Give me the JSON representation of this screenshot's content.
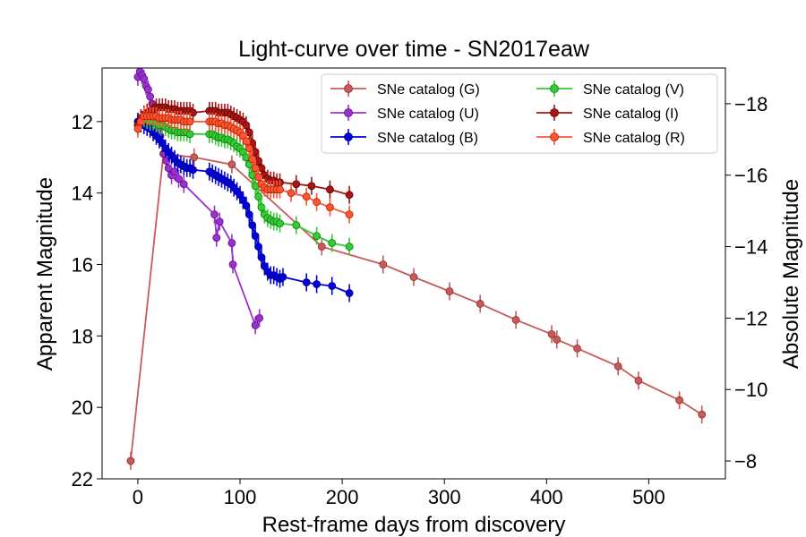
{
  "chart_data": {
    "type": "scatter",
    "title": "Light-curve over time - SN2017eaw",
    "xlabel": "Rest-frame days from discovery",
    "ylabel": "Apparent Magnitude",
    "ylabel_right": "Absolute Magnitude",
    "xlim": [
      -35,
      575
    ],
    "ylim": [
      22,
      10.5
    ],
    "y_inverted": true,
    "xticks": [
      0,
      100,
      200,
      300,
      400,
      500
    ],
    "yticks": [
      12,
      14,
      16,
      18,
      20,
      22
    ],
    "yticks_right": [
      -18,
      -16,
      -14,
      -12,
      -10,
      -8
    ],
    "right_axis_offset": 29.5,
    "legend_position": "upper right",
    "legend_columns": 2,
    "grid": false,
    "series": [
      {
        "name": "SNe catalog (G)",
        "color": "#c85a5a",
        "edge": "#8b2e2e",
        "points": [
          [
            -7,
            21.5
          ],
          [
            25,
            12.9
          ],
          [
            55,
            13.0
          ],
          [
            92,
            13.2
          ],
          [
            180,
            15.5
          ],
          [
            240,
            16.0
          ],
          [
            270,
            16.35
          ],
          [
            305,
            16.75
          ],
          [
            335,
            17.1
          ],
          [
            370,
            17.55
          ],
          [
            405,
            17.95
          ],
          [
            410,
            18.1
          ],
          [
            430,
            18.35
          ],
          [
            470,
            18.85
          ],
          [
            490,
            19.25
          ],
          [
            530,
            19.8
          ],
          [
            552,
            20.2
          ]
        ]
      },
      {
        "name": "SNe catalog (U)",
        "color": "#9b30d0",
        "edge": "#5a1080",
        "points": [
          [
            0,
            10.75
          ],
          [
            2,
            10.6
          ],
          [
            4,
            10.7
          ],
          [
            6,
            10.8
          ],
          [
            8,
            11.0
          ],
          [
            10,
            11.1
          ],
          [
            12,
            11.3
          ],
          [
            14,
            11.5
          ],
          [
            16,
            11.7
          ],
          [
            18,
            12.0
          ],
          [
            20,
            12.2
          ],
          [
            22,
            12.4
          ],
          [
            24,
            12.6
          ],
          [
            26,
            12.9
          ],
          [
            28,
            13.1
          ],
          [
            30,
            13.3
          ],
          [
            33,
            13.5
          ],
          [
            36,
            13.4
          ],
          [
            40,
            13.6
          ],
          [
            45,
            13.75
          ],
          [
            75,
            14.6
          ],
          [
            77,
            15.25
          ],
          [
            80,
            14.8
          ],
          [
            92,
            15.4
          ],
          [
            93,
            16.0
          ],
          [
            115,
            17.7
          ],
          [
            119,
            17.5
          ]
        ]
      },
      {
        "name": "SNe catalog (B)",
        "color": "#0000dd",
        "edge": "#000080",
        "points": [
          [
            0,
            12.0
          ],
          [
            3,
            12.05
          ],
          [
            6,
            12.1
          ],
          [
            9,
            12.15
          ],
          [
            12,
            12.2
          ],
          [
            15,
            12.3
          ],
          [
            18,
            12.4
          ],
          [
            21,
            12.5
          ],
          [
            24,
            12.6
          ],
          [
            27,
            12.75
          ],
          [
            30,
            12.85
          ],
          [
            33,
            12.95
          ],
          [
            36,
            13.05
          ],
          [
            39,
            13.15
          ],
          [
            42,
            13.2
          ],
          [
            45,
            13.25
          ],
          [
            48,
            13.3
          ],
          [
            51,
            13.3
          ],
          [
            54,
            13.35
          ],
          [
            70,
            13.4
          ],
          [
            73,
            13.45
          ],
          [
            76,
            13.5
          ],
          [
            79,
            13.55
          ],
          [
            82,
            13.6
          ],
          [
            85,
            13.65
          ],
          [
            88,
            13.7
          ],
          [
            91,
            13.75
          ],
          [
            94,
            13.85
          ],
          [
            97,
            13.95
          ],
          [
            100,
            14.05
          ],
          [
            103,
            14.2
          ],
          [
            106,
            14.35
          ],
          [
            109,
            14.6
          ],
          [
            112,
            14.9
          ],
          [
            115,
            15.2
          ],
          [
            118,
            15.5
          ],
          [
            121,
            15.8
          ],
          [
            124,
            16.05
          ],
          [
            127,
            16.2
          ],
          [
            130,
            16.3
          ],
          [
            133,
            16.3
          ],
          [
            136,
            16.35
          ],
          [
            139,
            16.4
          ],
          [
            142,
            16.35
          ],
          [
            165,
            16.5
          ],
          [
            175,
            16.55
          ],
          [
            190,
            16.6
          ],
          [
            207,
            16.8
          ]
        ]
      },
      {
        "name": "SNe catalog (V)",
        "color": "#33cc33",
        "edge": "#117711",
        "points": [
          [
            0,
            12.1
          ],
          [
            3,
            11.95
          ],
          [
            6,
            11.9
          ],
          [
            9,
            11.95
          ],
          [
            12,
            12.0
          ],
          [
            15,
            12.0
          ],
          [
            18,
            12.05
          ],
          [
            21,
            12.1
          ],
          [
            24,
            12.1
          ],
          [
            27,
            12.15
          ],
          [
            30,
            12.2
          ],
          [
            33,
            12.25
          ],
          [
            36,
            12.25
          ],
          [
            39,
            12.3
          ],
          [
            42,
            12.3
          ],
          [
            45,
            12.3
          ],
          [
            48,
            12.3
          ],
          [
            51,
            12.35
          ],
          [
            70,
            12.35
          ],
          [
            73,
            12.35
          ],
          [
            76,
            12.4
          ],
          [
            79,
            12.45
          ],
          [
            82,
            12.45
          ],
          [
            85,
            12.5
          ],
          [
            88,
            12.5
          ],
          [
            91,
            12.55
          ],
          [
            94,
            12.6
          ],
          [
            97,
            12.7
          ],
          [
            100,
            12.75
          ],
          [
            103,
            12.85
          ],
          [
            106,
            13.0
          ],
          [
            109,
            13.2
          ],
          [
            112,
            13.5
          ],
          [
            115,
            13.8
          ],
          [
            118,
            14.1
          ],
          [
            121,
            14.4
          ],
          [
            124,
            14.6
          ],
          [
            127,
            14.7
          ],
          [
            130,
            14.75
          ],
          [
            133,
            14.8
          ],
          [
            136,
            14.8
          ],
          [
            139,
            14.85
          ],
          [
            155,
            14.9
          ],
          [
            175,
            15.2
          ],
          [
            190,
            15.4
          ],
          [
            207,
            15.5
          ]
        ]
      },
      {
        "name": "SNe catalog (I)",
        "color": "#aa1515",
        "edge": "#550000",
        "points": [
          [
            0,
            12.1
          ],
          [
            3,
            11.9
          ],
          [
            6,
            11.8
          ],
          [
            9,
            11.75
          ],
          [
            12,
            11.7
          ],
          [
            15,
            11.65
          ],
          [
            18,
            11.6
          ],
          [
            21,
            11.6
          ],
          [
            24,
            11.6
          ],
          [
            27,
            11.6
          ],
          [
            30,
            11.65
          ],
          [
            33,
            11.65
          ],
          [
            36,
            11.65
          ],
          [
            39,
            11.7
          ],
          [
            42,
            11.7
          ],
          [
            45,
            11.7
          ],
          [
            48,
            11.7
          ],
          [
            51,
            11.7
          ],
          [
            54,
            11.75
          ],
          [
            70,
            11.7
          ],
          [
            73,
            11.7
          ],
          [
            76,
            11.7
          ],
          [
            79,
            11.75
          ],
          [
            82,
            11.75
          ],
          [
            85,
            11.75
          ],
          [
            88,
            11.75
          ],
          [
            91,
            11.8
          ],
          [
            94,
            11.85
          ],
          [
            97,
            11.9
          ],
          [
            100,
            11.95
          ],
          [
            103,
            12.0
          ],
          [
            106,
            12.1
          ],
          [
            109,
            12.3
          ],
          [
            112,
            12.6
          ],
          [
            115,
            12.85
          ],
          [
            118,
            13.1
          ],
          [
            121,
            13.3
          ],
          [
            124,
            13.5
          ],
          [
            127,
            13.6
          ],
          [
            130,
            13.65
          ],
          [
            133,
            13.65
          ],
          [
            136,
            13.7
          ],
          [
            139,
            13.7
          ],
          [
            155,
            13.75
          ],
          [
            170,
            13.8
          ],
          [
            188,
            13.9
          ],
          [
            207,
            14.05
          ]
        ]
      },
      {
        "name": "SNe catalog (R)",
        "color": "#ff5533",
        "edge": "#aa2200",
        "points": [
          [
            0,
            12.2
          ],
          [
            3,
            12.0
          ],
          [
            6,
            11.85
          ],
          [
            9,
            11.85
          ],
          [
            12,
            11.85
          ],
          [
            15,
            11.85
          ],
          [
            18,
            11.85
          ],
          [
            21,
            11.9
          ],
          [
            24,
            11.9
          ],
          [
            27,
            11.9
          ],
          [
            30,
            11.9
          ],
          [
            33,
            11.95
          ],
          [
            36,
            11.95
          ],
          [
            39,
            11.95
          ],
          [
            42,
            11.95
          ],
          [
            45,
            12.0
          ],
          [
            48,
            12.0
          ],
          [
            51,
            12.0
          ],
          [
            70,
            12.0
          ],
          [
            73,
            12.0
          ],
          [
            76,
            12.0
          ],
          [
            79,
            12.05
          ],
          [
            82,
            12.05
          ],
          [
            85,
            12.1
          ],
          [
            88,
            12.1
          ],
          [
            91,
            12.15
          ],
          [
            94,
            12.2
          ],
          [
            97,
            12.25
          ],
          [
            100,
            12.3
          ],
          [
            103,
            12.4
          ],
          [
            106,
            12.55
          ],
          [
            109,
            12.75
          ],
          [
            112,
            13.05
          ],
          [
            115,
            13.3
          ],
          [
            118,
            13.55
          ],
          [
            121,
            13.75
          ],
          [
            124,
            13.85
          ],
          [
            127,
            13.9
          ],
          [
            130,
            13.9
          ],
          [
            133,
            13.9
          ],
          [
            136,
            13.9
          ],
          [
            139,
            13.9
          ],
          [
            150,
            14.0
          ],
          [
            165,
            14.1
          ],
          [
            175,
            14.25
          ],
          [
            188,
            14.4
          ],
          [
            207,
            14.6
          ]
        ]
      }
    ]
  }
}
